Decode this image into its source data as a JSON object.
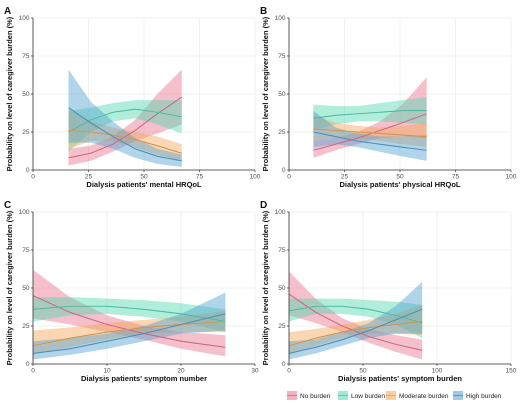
{
  "chart_data": [
    {
      "panel": "A",
      "type": "line",
      "xlabel": "Dialysis patients' mental HRQoL",
      "ylabel": "Probability on level of caregiver burden (%)",
      "xlim": [
        0,
        100
      ],
      "ylim": [
        0,
        100
      ],
      "xticks": [
        0,
        25,
        50,
        75,
        100
      ],
      "yticks": [
        0,
        25,
        50,
        75,
        100
      ],
      "x": [
        16,
        26,
        36,
        46,
        56,
        67
      ],
      "series": [
        {
          "name": "No burden",
          "color": "#e8738f",
          "values": [
            8,
            11,
            17,
            26,
            37,
            48
          ],
          "lower": [
            3,
            6,
            12,
            19,
            24,
            30
          ],
          "upper": [
            14,
            16,
            22,
            33,
            50,
            66
          ]
        },
        {
          "name": "Low burden",
          "color": "#4fd8b0",
          "values": [
            25,
            33,
            38,
            40,
            38,
            35
          ],
          "lower": [
            12,
            25,
            32,
            34,
            30,
            24
          ],
          "upper": [
            39,
            41,
            44,
            46,
            46,
            46
          ]
        },
        {
          "name": "Moderate burden",
          "color": "#f4a754",
          "values": [
            26,
            25,
            23,
            20,
            16,
            11
          ],
          "lower": [
            14,
            19,
            19,
            15,
            10,
            6
          ],
          "upper": [
            40,
            32,
            28,
            25,
            22,
            17
          ]
        },
        {
          "name": "High burden",
          "color": "#4fa1d0",
          "values": [
            41,
            31,
            22,
            14,
            9,
            6
          ],
          "lower": [
            18,
            18,
            14,
            8,
            4,
            2
          ],
          "upper": [
            66,
            45,
            32,
            21,
            14,
            10
          ]
        }
      ]
    },
    {
      "panel": "B",
      "type": "line",
      "xlabel": "Dialysis patients' physical HRQoL",
      "ylabel": "Probability on level of caregiver burden (%)",
      "xlim": [
        0,
        100
      ],
      "ylim": [
        0,
        100
      ],
      "xticks": [
        0,
        25,
        50,
        75,
        100
      ],
      "yticks": [
        0,
        25,
        50,
        75,
        100
      ],
      "x": [
        11,
        21,
        31,
        41,
        51,
        62
      ],
      "series": [
        {
          "name": "No burden",
          "color": "#e8738f",
          "values": [
            13,
            17,
            21,
            26,
            31,
            37
          ],
          "lower": [
            8,
            13,
            17,
            21,
            22,
            21
          ],
          "upper": [
            19,
            21,
            25,
            32,
            43,
            61
          ]
        },
        {
          "name": "Low burden",
          "color": "#4fd8b0",
          "values": [
            34,
            36,
            37,
            38,
            39,
            39
          ],
          "lower": [
            26,
            30,
            32,
            32,
            31,
            30
          ],
          "upper": [
            43,
            42,
            42,
            44,
            46,
            48
          ]
        },
        {
          "name": "Moderate burden",
          "color": "#f4a754",
          "values": [
            27,
            26,
            25,
            24,
            23,
            22
          ],
          "lower": [
            19,
            21,
            21,
            19,
            17,
            15
          ],
          "upper": [
            36,
            31,
            29,
            28,
            29,
            31
          ]
        },
        {
          "name": "High burden",
          "color": "#4fa1d0",
          "values": [
            25,
            22,
            19,
            17,
            15,
            13
          ],
          "lower": [
            15,
            17,
            15,
            12,
            9,
            6
          ],
          "upper": [
            39,
            28,
            24,
            22,
            22,
            23
          ]
        }
      ]
    },
    {
      "panel": "C",
      "type": "line",
      "xlabel": "Dialysis patients' symptom number",
      "ylabel": "Probability on level of caregiver burden (%)",
      "xlim": [
        0,
        30
      ],
      "ylim": [
        0,
        100
      ],
      "xticks": [
        0,
        10,
        20,
        30
      ],
      "yticks": [
        0,
        25,
        50,
        75,
        100
      ],
      "x": [
        0,
        5,
        10,
        15,
        20,
        26
      ],
      "series": [
        {
          "name": "No burden",
          "color": "#e8738f",
          "values": [
            45,
            34,
            26,
            20,
            15,
            11
          ],
          "lower": [
            30,
            26,
            21,
            16,
            10,
            5
          ],
          "upper": [
            62,
            44,
            32,
            25,
            21,
            19
          ]
        },
        {
          "name": "Low burden",
          "color": "#4fd8b0",
          "values": [
            36,
            38,
            38,
            36,
            33,
            28
          ],
          "lower": [
            28,
            32,
            33,
            31,
            28,
            21
          ],
          "upper": [
            44,
            44,
            43,
            42,
            40,
            36
          ]
        },
        {
          "name": "Moderate burden",
          "color": "#f4a754",
          "values": [
            12,
            17,
            21,
            24,
            26,
            28
          ],
          "lower": [
            6,
            11,
            16,
            20,
            21,
            21
          ],
          "upper": [
            22,
            24,
            27,
            29,
            31,
            35
          ]
        },
        {
          "name": "High burden",
          "color": "#4fa1d0",
          "values": [
            7,
            10,
            15,
            20,
            26,
            33
          ],
          "lower": [
            3,
            6,
            10,
            15,
            20,
            22
          ],
          "upper": [
            15,
            17,
            20,
            25,
            33,
            47
          ]
        }
      ]
    },
    {
      "panel": "D",
      "type": "line",
      "xlabel": "Dialysis patients' symptom burden",
      "ylabel": "Probability on level of caregiver burden (%)",
      "xlim": [
        0,
        150
      ],
      "ylim": [
        0,
        100
      ],
      "xticks": [
        0,
        50,
        100,
        150
      ],
      "yticks": [
        0,
        25,
        50,
        75,
        100
      ],
      "x": [
        0,
        18,
        36,
        54,
        72,
        90
      ],
      "series": [
        {
          "name": "No burden",
          "color": "#e8738f",
          "values": [
            46,
            34,
            25,
            18,
            13,
            9
          ],
          "lower": [
            32,
            27,
            21,
            14,
            8,
            3
          ],
          "upper": [
            61,
            43,
            30,
            23,
            19,
            16
          ]
        },
        {
          "name": "Low burden",
          "color": "#4fd8b0",
          "values": [
            35,
            38,
            38,
            36,
            32,
            27
          ],
          "lower": [
            28,
            33,
            33,
            31,
            26,
            17
          ],
          "upper": [
            43,
            43,
            43,
            42,
            41,
            39
          ]
        },
        {
          "name": "Moderate burden",
          "color": "#f4a754",
          "values": [
            12,
            17,
            21,
            24,
            26,
            28
          ],
          "lower": [
            6,
            12,
            17,
            20,
            20,
            19
          ],
          "upper": [
            21,
            23,
            26,
            29,
            33,
            39
          ]
        },
        {
          "name": "High burden",
          "color": "#4fa1d0",
          "values": [
            7,
            11,
            16,
            22,
            29,
            36
          ],
          "lower": [
            3,
            7,
            12,
            17,
            20,
            20
          ],
          "upper": [
            15,
            16,
            21,
            27,
            38,
            54
          ]
        }
      ]
    }
  ],
  "legend": {
    "placement": "bottom-right",
    "items": [
      {
        "label": "No burden",
        "color": "#e8738f"
      },
      {
        "label": "Low burden",
        "color": "#4fd8b0"
      },
      {
        "label": "Moderate burden",
        "color": "#f4a754"
      },
      {
        "label": "High burden",
        "color": "#4fa1d0"
      }
    ]
  }
}
